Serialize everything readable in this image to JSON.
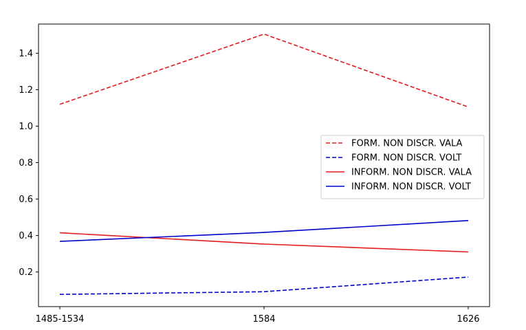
{
  "chart_data": {
    "type": "line",
    "title": "",
    "xlabel": "",
    "ylabel": "",
    "categories": [
      "1485-1534",
      "1584",
      "1626"
    ],
    "ylim": [
      0.01,
      1.56
    ],
    "yticks": [
      0.2,
      0.4,
      0.6,
      0.8,
      1.0,
      1.2,
      1.4
    ],
    "ytick_labels": [
      "0.2",
      "0.4",
      "0.6",
      "0.8",
      "1.0",
      "1.2",
      "1.4"
    ],
    "grid": false,
    "legend_position": "center-right",
    "series": [
      {
        "name": "FORM. NON DISCR. VALA",
        "values": [
          1.12,
          1.505,
          1.105
        ],
        "color": "#e41a1c",
        "style": "dashed"
      },
      {
        "name": "FORM. NON DISCR. VOLT",
        "values": [
          0.077,
          0.092,
          0.172
        ],
        "color": "#0000cd",
        "style": "dashed"
      },
      {
        "name": "INFORM. NON DISCR. VALA",
        "values": [
          0.415,
          0.353,
          0.31
        ],
        "color": "#e41a1c",
        "style": "solid"
      },
      {
        "name": "INFORM. NON DISCR. VOLT",
        "values": [
          0.368,
          0.417,
          0.482
        ],
        "color": "#0000cd",
        "style": "solid"
      }
    ]
  }
}
